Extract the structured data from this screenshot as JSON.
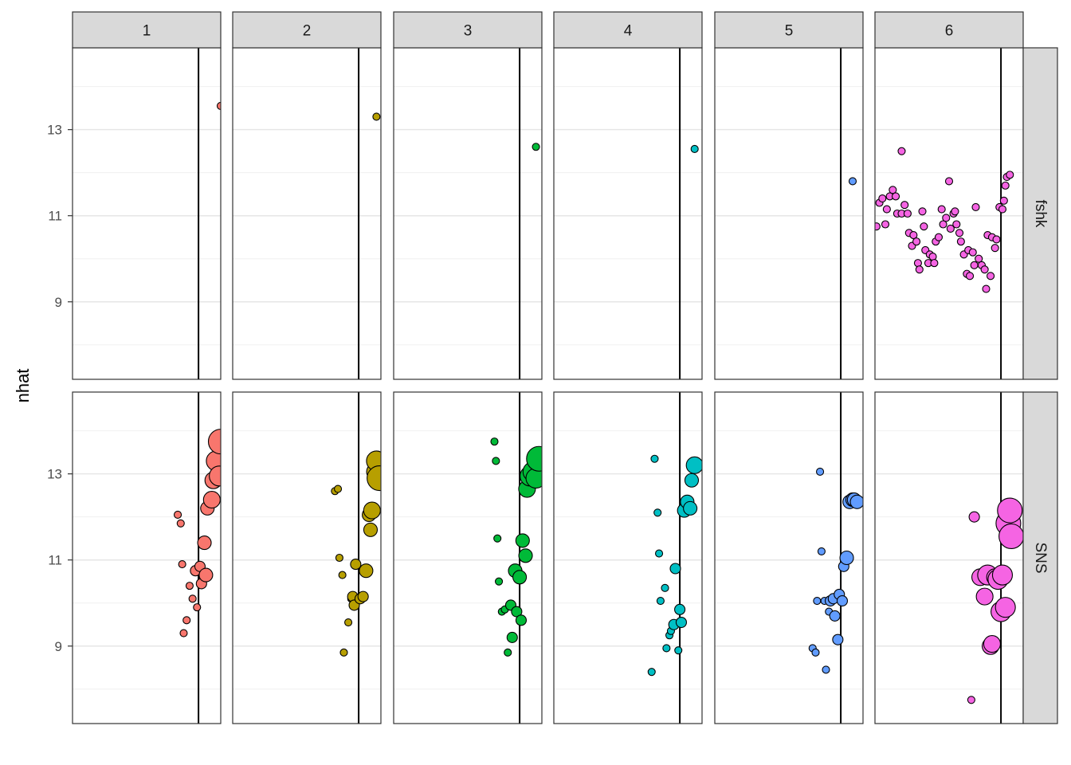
{
  "chart_data": {
    "type": "scatter",
    "ylabel": "nhat",
    "xlabel": "",
    "ylim": [
      7.2,
      14.9
    ],
    "yticks": [
      9,
      11,
      13
    ],
    "grid": true,
    "legend": "none",
    "columns": [
      "1",
      "2",
      "3",
      "4",
      "5",
      "6"
    ],
    "rows": [
      "fshk",
      "SNS"
    ],
    "colors": [
      "#F8766D",
      "#B79F00",
      "#00BA38",
      "#00BFC4",
      "#619CFF",
      "#F564E3"
    ],
    "point_outline": "#000000",
    "xlim": [
      0,
      1
    ],
    "reference_line_x": 0.85,
    "panels": [
      {
        "column": "1",
        "row": "fshk",
        "points": [
          [
            1.0,
            13.55,
            1
          ]
        ]
      },
      {
        "column": "2",
        "row": "fshk",
        "points": [
          [
            0.97,
            13.3,
            1
          ]
        ]
      },
      {
        "column": "3",
        "row": "fshk",
        "points": [
          [
            0.96,
            12.6,
            1
          ]
        ]
      },
      {
        "column": "4",
        "row": "fshk",
        "points": [
          [
            0.95,
            12.55,
            1
          ]
        ]
      },
      {
        "column": "5",
        "row": "fshk",
        "points": [
          [
            0.93,
            11.8,
            1
          ]
        ]
      },
      {
        "column": "6",
        "row": "fshk",
        "points": [
          [
            0.01,
            10.75,
            1
          ],
          [
            0.03,
            11.3,
            1
          ],
          [
            0.05,
            11.4,
            1
          ],
          [
            0.07,
            10.8,
            1
          ],
          [
            0.08,
            11.15,
            1
          ],
          [
            0.1,
            11.45,
            1
          ],
          [
            0.12,
            11.6,
            1
          ],
          [
            0.14,
            11.45,
            1
          ],
          [
            0.15,
            11.05,
            1
          ],
          [
            0.18,
            11.05,
            1
          ],
          [
            0.18,
            12.5,
            1
          ],
          [
            0.2,
            11.25,
            1
          ],
          [
            0.22,
            11.05,
            1
          ],
          [
            0.23,
            10.6,
            1
          ],
          [
            0.25,
            10.3,
            1
          ],
          [
            0.26,
            10.55,
            1
          ],
          [
            0.28,
            10.4,
            1
          ],
          [
            0.29,
            9.9,
            1
          ],
          [
            0.3,
            9.75,
            1
          ],
          [
            0.32,
            11.1,
            1
          ],
          [
            0.33,
            10.75,
            1
          ],
          [
            0.34,
            10.2,
            1
          ],
          [
            0.36,
            9.9,
            1
          ],
          [
            0.37,
            10.1,
            1
          ],
          [
            0.39,
            10.05,
            1
          ],
          [
            0.4,
            9.9,
            1
          ],
          [
            0.41,
            10.4,
            1
          ],
          [
            0.43,
            10.5,
            1
          ],
          [
            0.45,
            11.15,
            1
          ],
          [
            0.46,
            10.8,
            1
          ],
          [
            0.48,
            10.95,
            1
          ],
          [
            0.5,
            11.8,
            1
          ],
          [
            0.51,
            10.7,
            1
          ],
          [
            0.53,
            11.05,
            1
          ],
          [
            0.54,
            11.1,
            1
          ],
          [
            0.55,
            10.8,
            1
          ],
          [
            0.57,
            10.6,
            1
          ],
          [
            0.58,
            10.4,
            1
          ],
          [
            0.6,
            10.1,
            1
          ],
          [
            0.62,
            9.65,
            1
          ],
          [
            0.63,
            10.2,
            1
          ],
          [
            0.64,
            9.6,
            1
          ],
          [
            0.66,
            10.15,
            1
          ],
          [
            0.67,
            9.85,
            1
          ],
          [
            0.68,
            11.2,
            1
          ],
          [
            0.7,
            10.0,
            1
          ],
          [
            0.72,
            9.85,
            1
          ],
          [
            0.74,
            9.75,
            1
          ],
          [
            0.75,
            9.3,
            1
          ],
          [
            0.76,
            10.55,
            1
          ],
          [
            0.78,
            9.6,
            1
          ],
          [
            0.79,
            10.5,
            1
          ],
          [
            0.81,
            10.25,
            1
          ],
          [
            0.82,
            10.45,
            1
          ],
          [
            0.84,
            11.2,
            1
          ],
          [
            0.86,
            11.15,
            1
          ],
          [
            0.87,
            11.35,
            1
          ],
          [
            0.88,
            11.7,
            1
          ],
          [
            0.89,
            11.9,
            1
          ],
          [
            0.91,
            11.95,
            1
          ]
        ]
      },
      {
        "column": "1",
        "row": "SNS",
        "points": [
          [
            0.71,
            12.05,
            1
          ],
          [
            0.73,
            11.85,
            1
          ],
          [
            0.74,
            10.9,
            1
          ],
          [
            0.75,
            9.3,
            1
          ],
          [
            0.77,
            9.6,
            1
          ],
          [
            0.79,
            10.4,
            1
          ],
          [
            0.81,
            10.1,
            1
          ],
          [
            0.83,
            10.75,
            2
          ],
          [
            0.84,
            9.9,
            1
          ],
          [
            0.86,
            10.85,
            2
          ],
          [
            0.87,
            10.45,
            2
          ],
          [
            0.89,
            11.4,
            3
          ],
          [
            0.9,
            10.65,
            3
          ],
          [
            0.91,
            12.2,
            3
          ],
          [
            0.94,
            12.4,
            4
          ],
          [
            0.95,
            12.85,
            4
          ],
          [
            0.97,
            13.3,
            5
          ],
          [
            0.99,
            12.95,
            5
          ],
          [
            1.0,
            13.75,
            6
          ]
        ]
      },
      {
        "column": "2",
        "row": "SNS",
        "points": [
          [
            0.69,
            12.6,
            1
          ],
          [
            0.71,
            12.65,
            1
          ],
          [
            0.72,
            11.05,
            1
          ],
          [
            0.74,
            10.65,
            1
          ],
          [
            0.75,
            8.85,
            1
          ],
          [
            0.78,
            9.55,
            1
          ],
          [
            0.8,
            10.1,
            1
          ],
          [
            0.81,
            10.15,
            2
          ],
          [
            0.82,
            9.95,
            2
          ],
          [
            0.83,
            10.9,
            2
          ],
          [
            0.86,
            10.1,
            2
          ],
          [
            0.88,
            10.15,
            2
          ],
          [
            0.9,
            10.75,
            3
          ],
          [
            0.92,
            12.05,
            3
          ],
          [
            0.93,
            11.7,
            3
          ],
          [
            0.94,
            12.15,
            4
          ],
          [
            0.96,
            13.05,
            4
          ],
          [
            0.97,
            13.3,
            5
          ],
          [
            0.99,
            12.9,
            6
          ]
        ]
      },
      {
        "column": "3",
        "row": "SNS",
        "points": [
          [
            0.68,
            13.75,
            1
          ],
          [
            0.69,
            13.3,
            1
          ],
          [
            0.7,
            11.5,
            1
          ],
          [
            0.71,
            10.5,
            1
          ],
          [
            0.73,
            9.8,
            1
          ],
          [
            0.75,
            9.85,
            1
          ],
          [
            0.77,
            8.85,
            1
          ],
          [
            0.79,
            9.95,
            2
          ],
          [
            0.8,
            9.2,
            2
          ],
          [
            0.82,
            10.75,
            3
          ],
          [
            0.83,
            9.8,
            2
          ],
          [
            0.85,
            10.6,
            3
          ],
          [
            0.86,
            9.6,
            2
          ],
          [
            0.87,
            11.45,
            3
          ],
          [
            0.89,
            11.1,
            3
          ],
          [
            0.9,
            12.65,
            4
          ],
          [
            0.92,
            12.95,
            5
          ],
          [
            0.94,
            13.05,
            5
          ],
          [
            0.96,
            12.9,
            5
          ],
          [
            0.98,
            13.35,
            6
          ]
        ]
      },
      {
        "column": "4",
        "row": "SNS",
        "points": [
          [
            0.66,
            8.4,
            1
          ],
          [
            0.68,
            13.35,
            1
          ],
          [
            0.7,
            12.1,
            1
          ],
          [
            0.71,
            11.15,
            1
          ],
          [
            0.72,
            10.05,
            1
          ],
          [
            0.75,
            10.35,
            1
          ],
          [
            0.76,
            8.95,
            1
          ],
          [
            0.78,
            9.25,
            1
          ],
          [
            0.79,
            9.35,
            1
          ],
          [
            0.81,
            9.5,
            2
          ],
          [
            0.82,
            10.8,
            2
          ],
          [
            0.84,
            8.9,
            1
          ],
          [
            0.85,
            9.85,
            2
          ],
          [
            0.86,
            9.55,
            2
          ],
          [
            0.88,
            12.15,
            3
          ],
          [
            0.9,
            12.35,
            3
          ],
          [
            0.92,
            12.2,
            3
          ],
          [
            0.93,
            12.85,
            3
          ],
          [
            0.95,
            13.2,
            4
          ]
        ]
      },
      {
        "column": "5",
        "row": "SNS",
        "points": [
          [
            0.66,
            8.95,
            1
          ],
          [
            0.68,
            8.85,
            1
          ],
          [
            0.69,
            10.05,
            1
          ],
          [
            0.71,
            13.05,
            1
          ],
          [
            0.72,
            11.2,
            1
          ],
          [
            0.74,
            10.05,
            1
          ],
          [
            0.75,
            8.45,
            1
          ],
          [
            0.77,
            9.8,
            1
          ],
          [
            0.78,
            10.05,
            2
          ],
          [
            0.8,
            10.1,
            2
          ],
          [
            0.81,
            9.7,
            2
          ],
          [
            0.83,
            9.15,
            2
          ],
          [
            0.84,
            10.2,
            2
          ],
          [
            0.86,
            10.05,
            2
          ],
          [
            0.87,
            10.85,
            2
          ],
          [
            0.89,
            11.05,
            3
          ],
          [
            0.91,
            12.35,
            3
          ],
          [
            0.93,
            12.4,
            3
          ],
          [
            0.94,
            12.4,
            3
          ],
          [
            0.96,
            12.35,
            3
          ]
        ]
      },
      {
        "column": "6",
        "row": "SNS",
        "points": [
          [
            0.65,
            7.75,
            1
          ],
          [
            0.67,
            12.0,
            2
          ],
          [
            0.71,
            10.6,
            4
          ],
          [
            0.74,
            10.15,
            4
          ],
          [
            0.76,
            10.65,
            5
          ],
          [
            0.78,
            9.0,
            4
          ],
          [
            0.79,
            9.05,
            4
          ],
          [
            0.81,
            10.6,
            4
          ],
          [
            0.83,
            10.55,
            5
          ],
          [
            0.85,
            9.8,
            5
          ],
          [
            0.86,
            10.65,
            5
          ],
          [
            0.88,
            9.9,
            5
          ],
          [
            0.9,
            11.85,
            6
          ],
          [
            0.91,
            12.15,
            6
          ],
          [
            0.92,
            11.55,
            6
          ]
        ]
      }
    ]
  }
}
